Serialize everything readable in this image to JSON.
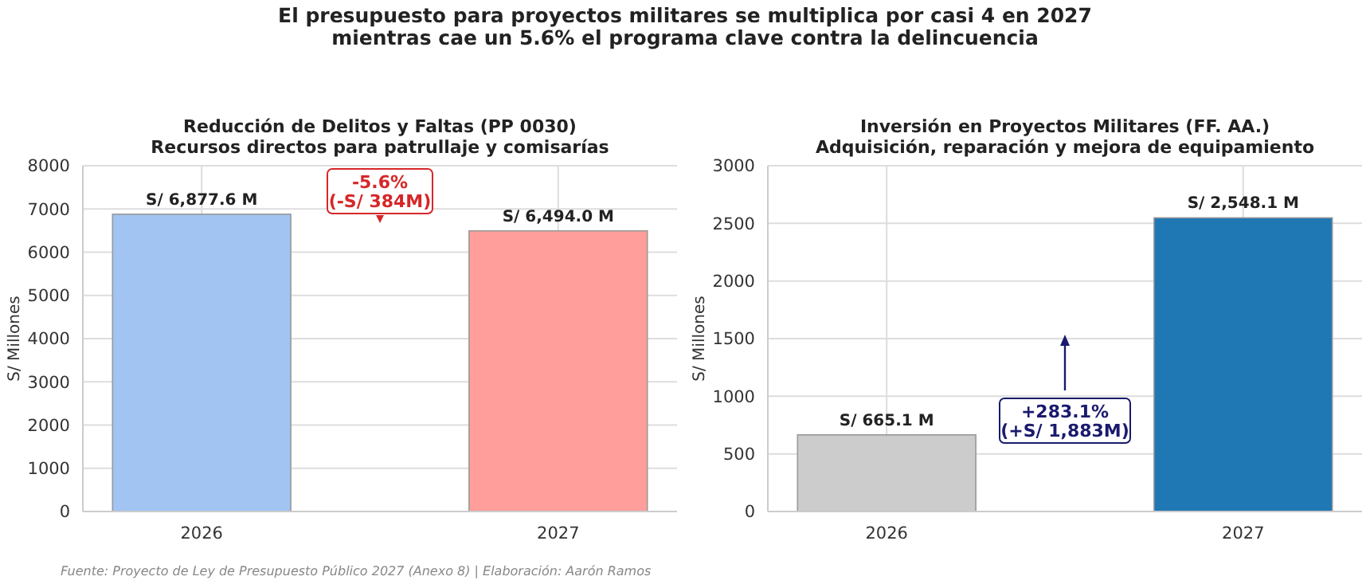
{
  "chart_data": [
    {
      "type": "bar",
      "title": "Reducción de Delitos y Faltas (PP 0030)",
      "subtitle": "Recursos directos para patrullaje y comisarías",
      "ylabel": "S/ Millones",
      "categories": [
        "2026",
        "2027"
      ],
      "values": [
        6877.6,
        6494.0
      ],
      "colors": [
        "#a1c4f2",
        "#ff9e9b"
      ],
      "value_labels": [
        "S/ 6,877.6 M",
        "S/ 6,494.0 M"
      ],
      "ylim": [
        0,
        8000
      ],
      "yticks": [
        0,
        1000,
        2000,
        3000,
        4000,
        5000,
        6000,
        7000,
        8000
      ],
      "grid": true,
      "annotations": [
        "El presupuesto para proyectos militares se multiplica por casi 4 en 2027\nmientras cae un 5.6% el programa clave contra la delincuencia",
        "-5.6%\n(-S/ 384M)",
        "Fuente: Proyecto de Ley de Presupuesto Público 2027 (Anexo 8) | Elaboración: Aarón Ramos"
      ]
    },
    {
      "type": "bar",
      "title": "Inversión en Proyectos Militares (FF. AA.)",
      "subtitle": "Adquisición, reparación y mejora de equipamiento",
      "ylabel": "S/ Millones",
      "categories": [
        "2026",
        "2027"
      ],
      "values": [
        665.1,
        2548.1
      ],
      "colors": [
        "#cccccc",
        "#1f77b4"
      ],
      "value_labels": [
        "S/ 665.1 M",
        "S/ 2,548.1 M"
      ],
      "ylim": [
        0,
        3000
      ],
      "yticks": [
        0,
        500,
        1000,
        1500,
        2000,
        2500,
        3000
      ],
      "grid": true,
      "annotations": [
        "+283.1%\n(+S/ 1,883M)"
      ]
    }
  ]
}
